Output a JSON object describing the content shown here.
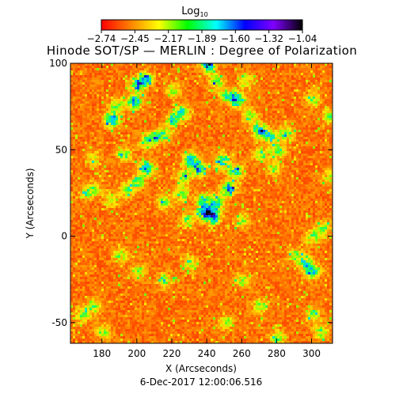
{
  "chart_data": {
    "type": "heatmap",
    "title": "Hinode SOT/SP — MERLIN : Degree of Polarization",
    "xlabel": "X (Arcseconds)",
    "ylabel": "Y (Arcseconds)",
    "xlim": [
      162,
      312
    ],
    "ylim": [
      -62,
      100
    ],
    "x_ticks": [
      180,
      200,
      220,
      240,
      260,
      280,
      300
    ],
    "y_ticks": [
      -50,
      0,
      50,
      100
    ],
    "timestamp": "6-Dec-2017 12:00:06.516",
    "colorbar": {
      "title": "Log",
      "title_subscript": "10",
      "colormap": "rainbow",
      "range": [
        -2.74,
        -1.04
      ],
      "tick_labels": [
        "−2.74",
        "−2.45",
        "−2.17",
        "−1.89",
        "−1.60",
        "−1.32",
        "−1.04"
      ],
      "colors": [
        "#ff0000",
        "#ff8000",
        "#ffff00",
        "#00ff00",
        "#00ffff",
        "#0000ff",
        "#8000ff",
        "#000000"
      ]
    },
    "map_summary": {
      "background_level": -2.6,
      "high_polarization_network": "irregular green/blue network lanes around (200..260, 20..90) and (230..250, 0..20)"
    }
  }
}
